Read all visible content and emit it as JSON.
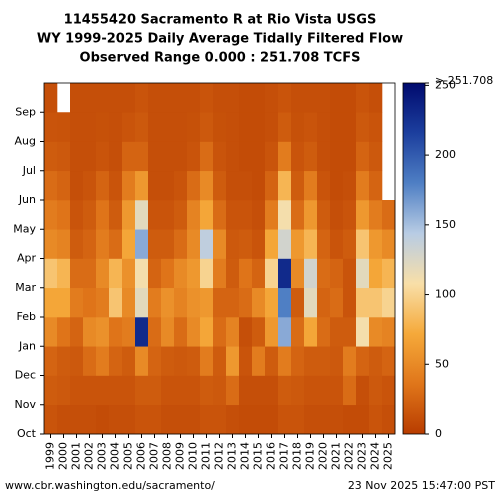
{
  "chart_data": {
    "type": "heatmap",
    "title": [
      "11455420 Sacramento R at Rio Vista USGS",
      "WY 1999-2025 Daily Average Tidally Filtered Flow",
      "Observed Range 0.000 : 251.708 TCFS"
    ],
    "categories": [
      "1999",
      "2000",
      "2001",
      "2002",
      "2003",
      "2004",
      "2005",
      "2006",
      "2007",
      "2008",
      "2009",
      "2010",
      "2011",
      "2012",
      "2013",
      "2014",
      "2015",
      "2016",
      "2017",
      "2018",
      "2019",
      "2020",
      "2021",
      "2022",
      "2023",
      "2024",
      "2025"
    ],
    "rows": [
      "Oct",
      "Nov",
      "Dec",
      "Jan",
      "Feb",
      "Mar",
      "Apr",
      "May",
      "Jun",
      "Jul",
      "Aug",
      "Sep"
    ],
    "values": [
      [
        15,
        20,
        25,
        50,
        70,
        90,
        50,
        40,
        30,
        20,
        15,
        12
      ],
      [
        12,
        18,
        20,
        35,
        70,
        80,
        45,
        35,
        25,
        18,
        14,
        null
      ],
      [
        12,
        15,
        18,
        25,
        40,
        30,
        20,
        15,
        12,
        12,
        12,
        12
      ],
      [
        12,
        15,
        30,
        50,
        35,
        30,
        25,
        20,
        15,
        12,
        12,
        12
      ],
      [
        10,
        15,
        40,
        55,
        40,
        50,
        40,
        35,
        25,
        15,
        13,
        12
      ],
      [
        12,
        15,
        25,
        35,
        90,
        80,
        30,
        20,
        15,
        12,
        12,
        12
      ],
      [
        12,
        15,
        20,
        40,
        50,
        55,
        70,
        60,
        40,
        25,
        15,
        12
      ],
      [
        15,
        20,
        50,
        230,
        120,
        110,
        160,
        120,
        60,
        25,
        18,
        15
      ],
      [
        15,
        20,
        25,
        30,
        40,
        25,
        20,
        15,
        12,
        12,
        12,
        12
      ],
      [
        12,
        15,
        20,
        50,
        55,
        35,
        20,
        15,
        12,
        12,
        12,
        12
      ],
      [
        12,
        15,
        18,
        30,
        45,
        50,
        30,
        20,
        15,
        12,
        12,
        12
      ],
      [
        12,
        15,
        20,
        50,
        55,
        60,
        50,
        45,
        30,
        15,
        13,
        12
      ],
      [
        15,
        20,
        40,
        70,
        60,
        100,
        140,
        70,
        50,
        30,
        18,
        15
      ],
      [
        15,
        18,
        20,
        30,
        25,
        40,
        50,
        30,
        20,
        15,
        13,
        12
      ],
      [
        12,
        30,
        60,
        45,
        25,
        20,
        18,
        15,
        12,
        12,
        12,
        12
      ],
      [
        10,
        12,
        15,
        12,
        30,
        35,
        20,
        15,
        12,
        10,
        10,
        10
      ],
      [
        10,
        12,
        40,
        20,
        50,
        25,
        15,
        12,
        10,
        10,
        10,
        10
      ],
      [
        10,
        12,
        20,
        60,
        70,
        100,
        70,
        40,
        25,
        15,
        12,
        12
      ],
      [
        15,
        20,
        40,
        160,
        180,
        230,
        130,
        110,
        80,
        40,
        20,
        15
      ],
      [
        15,
        18,
        25,
        30,
        20,
        50,
        60,
        30,
        20,
        15,
        13,
        12
      ],
      [
        12,
        15,
        20,
        70,
        120,
        130,
        80,
        60,
        40,
        20,
        15,
        12
      ],
      [
        12,
        15,
        20,
        30,
        25,
        30,
        25,
        20,
        15,
        12,
        12,
        12
      ],
      [
        12,
        15,
        18,
        20,
        30,
        25,
        15,
        12,
        10,
        10,
        10,
        10
      ],
      [
        10,
        30,
        40,
        20,
        15,
        15,
        20,
        15,
        12,
        10,
        10,
        10
      ],
      [
        10,
        12,
        25,
        110,
        90,
        120,
        90,
        60,
        40,
        25,
        18,
        15
      ],
      [
        15,
        18,
        20,
        50,
        90,
        70,
        60,
        40,
        25,
        18,
        15,
        12
      ],
      [
        12,
        15,
        25,
        45,
        100,
        80,
        50,
        30,
        null,
        null,
        null,
        null
      ]
    ],
    "colors": [
      "#b83c00",
      "#e0761a",
      "#f5a93a",
      "#f8dfa8",
      "#b8cce4",
      "#4f7fc4",
      "#1c3f9e",
      "#000a6e"
    ],
    "zlim": [
      0,
      251.708
    ],
    "zticks": [
      0,
      50,
      100,
      150,
      200,
      250
    ],
    "zmax_label": "> 251.708",
    "source": "www.cbr.washington.edu/sacramento/",
    "timestamp": "23 Nov 2025 15:47:00 PST"
  }
}
